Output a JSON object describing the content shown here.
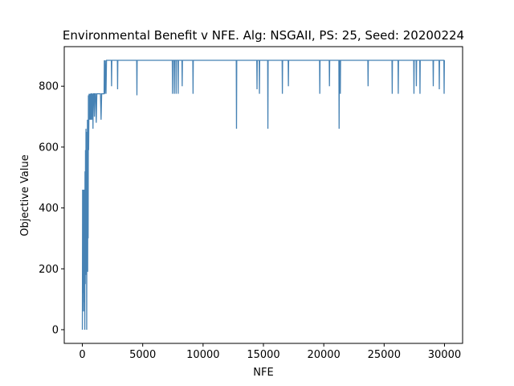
{
  "chart_data": {
    "type": "line",
    "title": "Environmental Benefit v NFE. Alg: NSGAII, PS: 25, Seed: 20200224",
    "xlabel": "NFE",
    "ylabel": "Objective Value",
    "xlim": [
      -1500,
      31500
    ],
    "ylim": [
      -45,
      930
    ],
    "x_ticks": [
      0,
      5000,
      10000,
      15000,
      20000,
      25000,
      30000
    ],
    "x_tick_labels": [
      "0",
      "5000",
      "10000",
      "15000",
      "20000",
      "25000",
      "30000"
    ],
    "y_ticks": [
      0,
      200,
      400,
      600,
      800
    ],
    "y_tick_labels": [
      "0",
      "200",
      "400",
      "600",
      "800"
    ],
    "grid": false,
    "series": [
      {
        "color": "#4682b4",
        "points": [
          [
            0,
            0
          ],
          [
            20,
            460
          ],
          [
            40,
            120
          ],
          [
            60,
            200
          ],
          [
            80,
            460
          ],
          [
            100,
            60
          ],
          [
            120,
            300
          ],
          [
            140,
            460
          ],
          [
            160,
            90
          ],
          [
            180,
            400
          ],
          [
            200,
            0
          ],
          [
            220,
            520
          ],
          [
            240,
            150
          ],
          [
            260,
            590
          ],
          [
            280,
            250
          ],
          [
            300,
            660
          ],
          [
            320,
            180
          ],
          [
            340,
            600
          ],
          [
            360,
            0
          ],
          [
            380,
            650
          ],
          [
            400,
            280
          ],
          [
            420,
            690
          ],
          [
            440,
            190
          ],
          [
            460,
            660
          ],
          [
            480,
            300
          ],
          [
            500,
            770
          ],
          [
            520,
            590
          ],
          [
            540,
            690
          ],
          [
            560,
            775
          ],
          [
            580,
            690
          ],
          [
            600,
            775
          ],
          [
            620,
            690
          ],
          [
            640,
            775
          ],
          [
            660,
            750
          ],
          [
            680,
            775
          ],
          [
            700,
            690
          ],
          [
            720,
            775
          ],
          [
            760,
            775
          ],
          [
            780,
            690
          ],
          [
            800,
            775
          ],
          [
            840,
            700
          ],
          [
            860,
            775
          ],
          [
            880,
            660
          ],
          [
            900,
            775
          ],
          [
            960,
            775
          ],
          [
            1000,
            700
          ],
          [
            1040,
            775
          ],
          [
            1100,
            775
          ],
          [
            1150,
            680
          ],
          [
            1200,
            775
          ],
          [
            1500,
            775
          ],
          [
            1550,
            690
          ],
          [
            1600,
            775
          ],
          [
            1800,
            775
          ],
          [
            1820,
            885
          ],
          [
            1860,
            775
          ],
          [
            1900,
            885
          ],
          [
            1960,
            775
          ],
          [
            2000,
            885
          ],
          [
            2400,
            885
          ],
          [
            2420,
            800
          ],
          [
            2440,
            885
          ],
          [
            2900,
            885
          ],
          [
            2920,
            790
          ],
          [
            2940,
            885
          ],
          [
            4500,
            885
          ],
          [
            4520,
            770
          ],
          [
            4540,
            885
          ],
          [
            7450,
            885
          ],
          [
            7470,
            775
          ],
          [
            7490,
            885
          ],
          [
            7600,
            885
          ],
          [
            7620,
            775
          ],
          [
            7640,
            885
          ],
          [
            7750,
            885
          ],
          [
            7770,
            775
          ],
          [
            7790,
            885
          ],
          [
            7920,
            885
          ],
          [
            7940,
            775
          ],
          [
            7960,
            885
          ],
          [
            8250,
            885
          ],
          [
            8270,
            800
          ],
          [
            8290,
            885
          ],
          [
            9150,
            885
          ],
          [
            9170,
            775
          ],
          [
            9190,
            885
          ],
          [
            12750,
            885
          ],
          [
            12770,
            660
          ],
          [
            12790,
            885
          ],
          [
            14450,
            885
          ],
          [
            14470,
            790
          ],
          [
            14490,
            885
          ],
          [
            14650,
            885
          ],
          [
            14670,
            775
          ],
          [
            14690,
            885
          ],
          [
            15350,
            885
          ],
          [
            15370,
            660
          ],
          [
            15390,
            885
          ],
          [
            16550,
            885
          ],
          [
            16570,
            775
          ],
          [
            16590,
            885
          ],
          [
            17050,
            885
          ],
          [
            17070,
            800
          ],
          [
            17090,
            885
          ],
          [
            19650,
            885
          ],
          [
            19670,
            775
          ],
          [
            19690,
            885
          ],
          [
            20450,
            885
          ],
          [
            20470,
            800
          ],
          [
            20490,
            885
          ],
          [
            21250,
            885
          ],
          [
            21270,
            660
          ],
          [
            21290,
            885
          ],
          [
            21350,
            885
          ],
          [
            21370,
            775
          ],
          [
            21390,
            885
          ],
          [
            23650,
            885
          ],
          [
            23670,
            800
          ],
          [
            23690,
            885
          ],
          [
            25650,
            885
          ],
          [
            25670,
            775
          ],
          [
            25690,
            885
          ],
          [
            26150,
            885
          ],
          [
            26170,
            775
          ],
          [
            26190,
            885
          ],
          [
            27450,
            885
          ],
          [
            27470,
            775
          ],
          [
            27490,
            885
          ],
          [
            27650,
            885
          ],
          [
            27670,
            800
          ],
          [
            27690,
            885
          ],
          [
            27950,
            885
          ],
          [
            27970,
            775
          ],
          [
            27990,
            885
          ],
          [
            29050,
            885
          ],
          [
            29070,
            800
          ],
          [
            29090,
            885
          ],
          [
            29550,
            885
          ],
          [
            29570,
            790
          ],
          [
            29590,
            885
          ],
          [
            29950,
            885
          ],
          [
            29970,
            775
          ],
          [
            29990,
            885
          ],
          [
            30000,
            885
          ]
        ]
      }
    ]
  }
}
